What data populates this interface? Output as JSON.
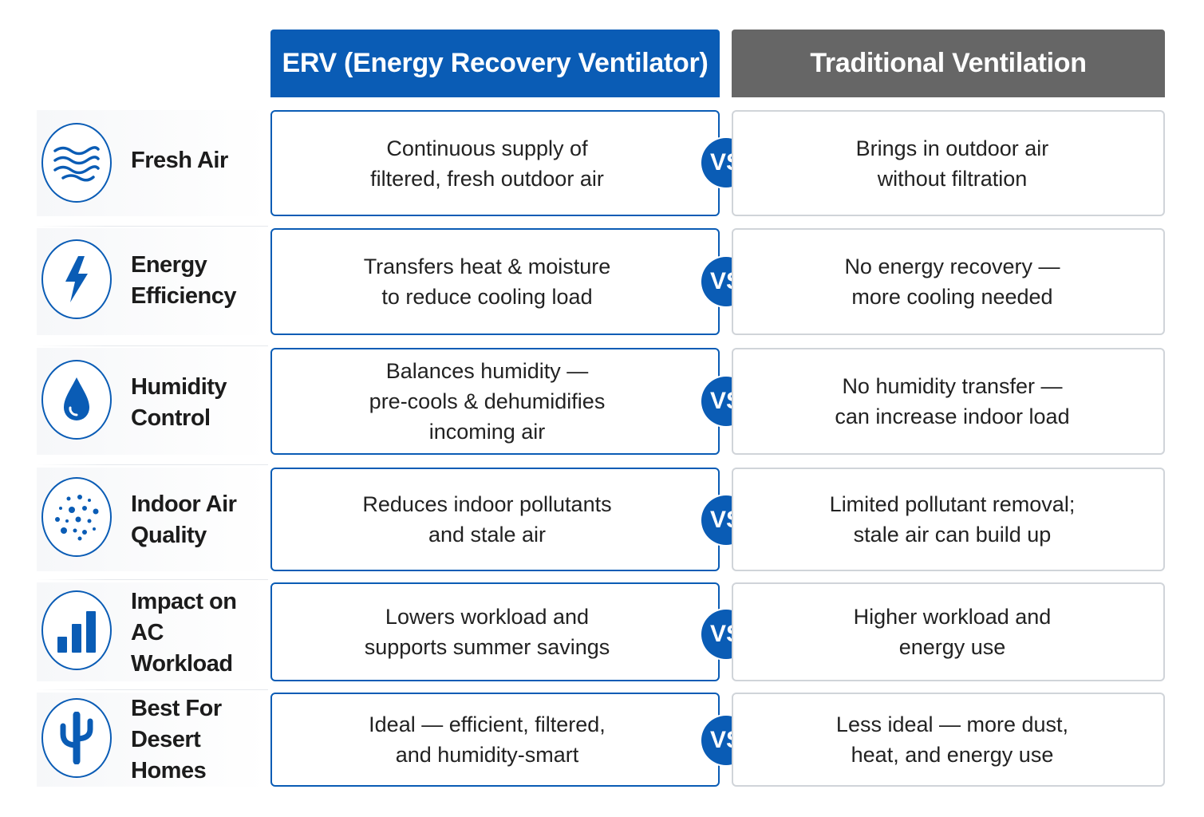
{
  "colors": {
    "erv_blue": "#0a5cb5",
    "traditional_gray": "#666666",
    "cell_border_gray": "#d0d4d9"
  },
  "headers": {
    "erv": "ERV (Energy Recovery Ventilator)",
    "traditional": "Traditional Ventilation"
  },
  "vs_label": "VS",
  "rows": [
    {
      "icon": "air-waves-icon",
      "label": "Fresh Air",
      "erv": "Continuous supply of\nfiltered, fresh outdoor air",
      "traditional": "Brings in outdoor air\nwithout filtration"
    },
    {
      "icon": "lightning-bolt-icon",
      "label": "Energy\nEfficiency",
      "erv": "Transfers heat & moisture\nto reduce cooling load",
      "traditional": "No energy recovery —\nmore cooling needed"
    },
    {
      "icon": "water-drop-icon",
      "label": "Humidity\nControl",
      "erv": "Balances humidity —\npre-cools & dehumidifies\nincoming air",
      "traditional": "No humidity transfer —\ncan increase indoor load"
    },
    {
      "icon": "particles-icon",
      "label": "Indoor Air\nQuality",
      "erv": "Reduces indoor pollutants\nand stale air",
      "traditional": "Limited pollutant removal;\nstale air can build up"
    },
    {
      "icon": "bar-chart-icon",
      "label": "Impact on AC\nWorkload",
      "erv": "Lowers workload and\nsupports summer savings",
      "traditional": "Higher workload and\nenergy use"
    },
    {
      "icon": "cactus-icon",
      "label": "Best For Desert\nHomes",
      "erv": "Ideal — efficient, filtered,\nand humidity-smart",
      "traditional": "Less ideal — more dust,\nheat, and energy use"
    }
  ]
}
